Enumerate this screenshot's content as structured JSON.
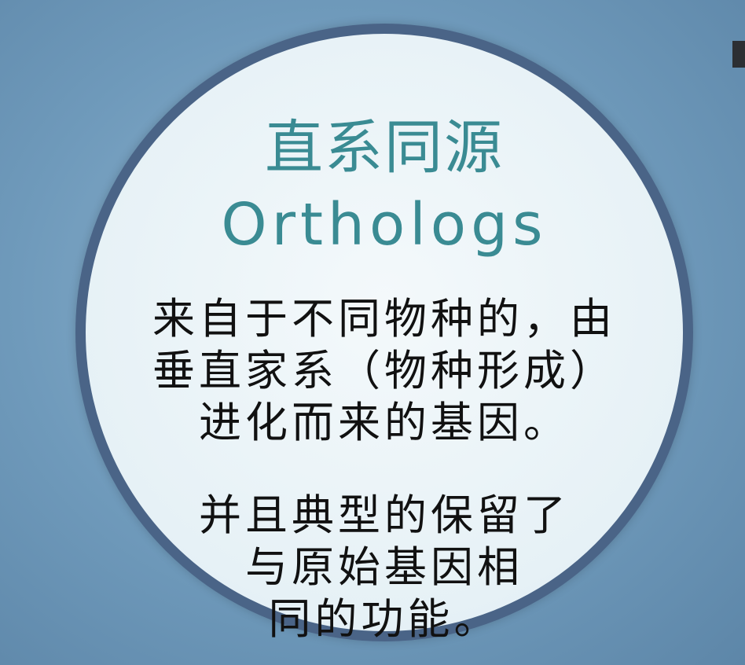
{
  "slide": {
    "title_chinese": "直系同源",
    "title_english": "Orthologs",
    "definition_lines": [
      "来自于不同物种的，由",
      "垂直家系（物种形成）",
      "进化而来的基因。"
    ],
    "function_lines": [
      "并且典型的保留了",
      "与原始基因相",
      "同的功能。"
    ]
  },
  "colors": {
    "background": "#6f9abb",
    "circle_fill": "#eef5f8",
    "circle_border": "#4a6487",
    "title": "#3a8b93",
    "body_text": "#111111"
  }
}
